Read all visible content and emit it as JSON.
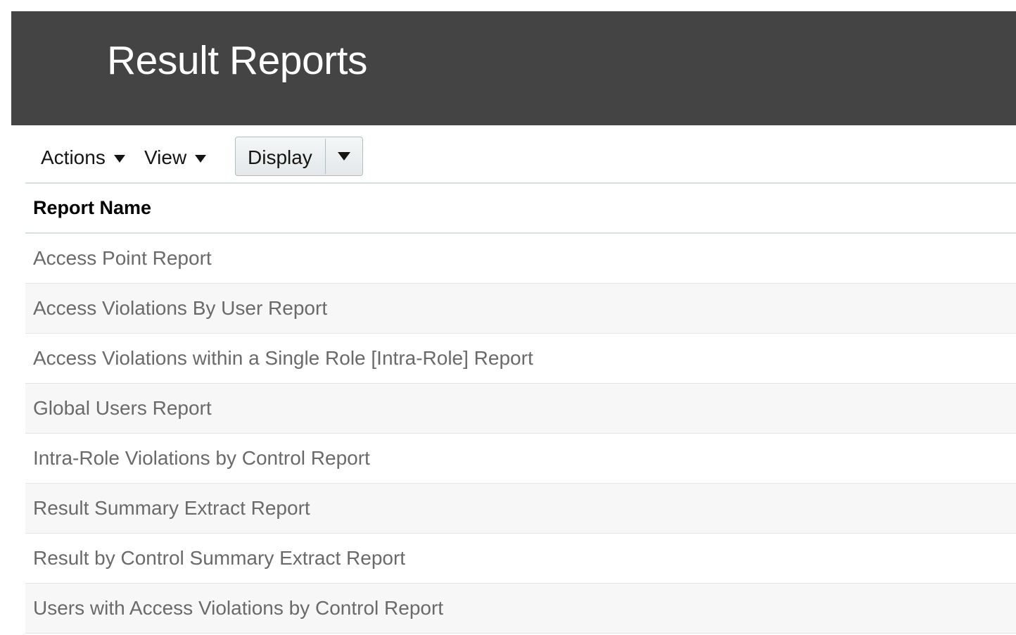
{
  "page": {
    "title": "Result Reports"
  },
  "toolbar": {
    "actions_label": "Actions",
    "view_label": "View",
    "display_label": "Display"
  },
  "table": {
    "columns": [
      "Report Name"
    ],
    "rows": [
      "Access Point Report",
      "Access Violations By User Report",
      "Access Violations within a Single Role [Intra-Role] Report",
      "Global Users Report",
      "Intra-Role Violations by Control Report",
      "Result Summary Extract Report",
      "Result by Control Summary Extract Report",
      "Users with Access Violations by Control Report"
    ]
  },
  "colors": {
    "header_background": "#444444",
    "header_text": "#ffffff",
    "row_text": "#6a6a6a",
    "alt_row_background": "#f7f7f7"
  }
}
